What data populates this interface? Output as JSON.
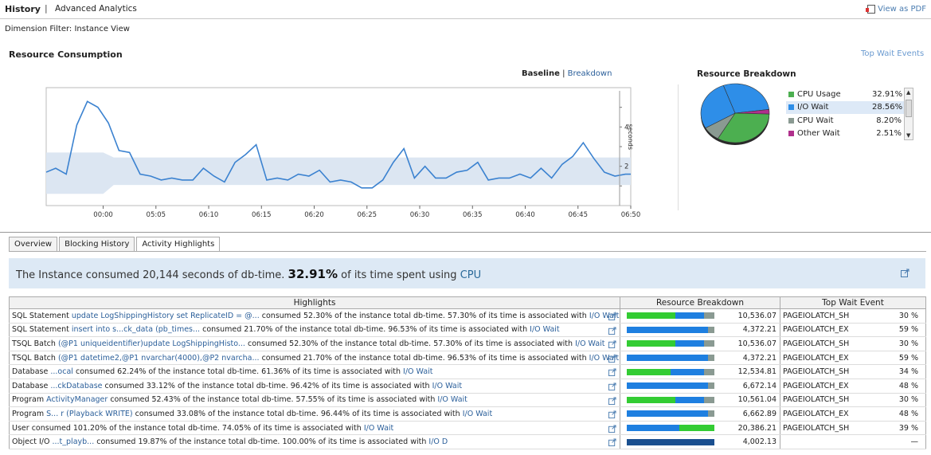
{
  "header": {
    "brand": "History",
    "separator": "|",
    "subtitle": "Advanced Analytics",
    "pdf_label": "View as PDF"
  },
  "dimension_filter": "Dimension Filter: Instance View",
  "resource_consumption": {
    "title": "Resource Consumption",
    "top_wait_link": "Top Wait Events",
    "toggle_active": "Baseline",
    "toggle_sep": "|",
    "toggle_other": "Breakdown"
  },
  "chart_data": {
    "type": "line",
    "ylabel": "seconds",
    "ylim": [
      0,
      6
    ],
    "yticks": [
      "2",
      "4"
    ],
    "xlim": [
      -5.4,
      50
    ],
    "xticks": [
      0,
      5,
      10,
      15,
      20,
      25,
      30,
      35,
      40,
      45,
      50
    ],
    "xtick_labels": [
      "00:00",
      "05:05",
      "06:10",
      "06:15",
      "06:20",
      "06:25",
      "06:30",
      "06:35",
      "06:40",
      "06:45",
      "06:50"
    ],
    "series": [
      {
        "x": [
          -5.4,
          -4.5,
          -3.5,
          -2.5,
          -1.5,
          -0.5,
          0.5,
          1.5,
          2.5,
          3.5,
          4.5,
          5.5,
          6.5,
          7.5,
          8.5,
          9.5,
          10.5,
          11.5,
          12.5,
          13.5,
          14.5,
          15.5,
          16.5,
          17.5,
          18.5,
          19.5,
          20.5,
          21.5,
          22.5,
          23.5,
          24.5,
          25.5,
          26.5,
          27.5,
          28.5,
          29.5,
          30.5,
          31.5,
          32.5,
          33.5,
          34.5,
          35.5,
          36.5,
          37.5,
          38.5,
          39.5,
          40.5,
          41.5,
          42.5,
          43.5,
          44.5,
          45.5,
          46.5,
          47.5,
          48.5,
          49.5,
          50
        ],
        "y": [
          1.7,
          1.9,
          1.6,
          4.1,
          5.3,
          5.0,
          4.2,
          2.8,
          2.7,
          1.6,
          1.5,
          1.3,
          1.4,
          1.3,
          1.3,
          1.9,
          1.5,
          1.2,
          2.2,
          2.6,
          3.1,
          1.3,
          1.4,
          1.3,
          1.6,
          1.5,
          1.8,
          1.2,
          1.3,
          1.2,
          0.9,
          0.9,
          1.3,
          2.2,
          2.9,
          1.4,
          2.0,
          1.4,
          1.4,
          1.7,
          1.8,
          2.2,
          1.3,
          1.4,
          1.4,
          1.6,
          1.4,
          1.9,
          1.4,
          2.1,
          2.5,
          3.2,
          2.4,
          1.7,
          1.5,
          1.6,
          1.6
        ]
      }
    ],
    "baseline_band": {
      "x": [
        -5.4,
        0,
        1,
        50
      ],
      "upper": [
        2.7,
        2.7,
        2.45,
        2.45
      ],
      "lower": [
        0.6,
        0.6,
        1.05,
        1.05
      ]
    }
  },
  "resource_breakdown": {
    "title": "Resource Breakdown",
    "slices": [
      {
        "label": "CPU Usage",
        "value": "32.91%",
        "pct": 32.91,
        "color": "#4caf50"
      },
      {
        "label": "I/O Wait",
        "value": "28.56%",
        "pct": 28.56,
        "color": "#2e8ee8"
      },
      {
        "label": "CPU Wait",
        "value": "8.20%",
        "pct": 8.2,
        "color": "#8a9a92"
      },
      {
        "label": "Other Wait",
        "value": "2.51%",
        "pct": 2.51,
        "color": "#b0308c"
      }
    ],
    "pie_remainder": [
      {
        "pct": 27.82,
        "color": "#2e8ee8"
      }
    ],
    "selected_index": 1
  },
  "tabs": [
    {
      "label": "Overview"
    },
    {
      "label": "Blocking History"
    },
    {
      "label": "Activity Highlights"
    }
  ],
  "banner": {
    "pre": "The Instance consumed 20,144 seconds of db-time.",
    "pct": "32.91%",
    "mid": "of its time spent using",
    "cpu": "CPU"
  },
  "table": {
    "headers": [
      "Highlights",
      "Resource Breakdown",
      "Top Wait Event"
    ],
    "rows": [
      {
        "type": "SQL Statement",
        "obj": "update LogShippingHistory set ReplicateID = @...",
        "text": "consumed 52.30% of the instance total db-time. 57.30% of its time is associated with",
        "wait_link": "I/O Wait",
        "bar": [
          0.55,
          0.33,
          0.12
        ],
        "value": "10,536.07",
        "event": "PAGEIOLATCH_SH",
        "event_pct": "30 %"
      },
      {
        "type": "SQL Statement",
        "obj": "insert into s...ck_data (pb_times...",
        "text": "consumed 21.70% of the instance total db-time. 96.53% of its time is associated with",
        "wait_link": "I/O Wait",
        "bar": [
          0.0,
          0.93,
          0.07
        ],
        "value": "4,372.21",
        "event": "PAGEIOLATCH_EX",
        "event_pct": "59 %"
      },
      {
        "type": "TSQL Batch",
        "obj": "(@P1 uniqueidentifier)update LogShippingHisto...",
        "text": "consumed 52.30% of the instance total db-time. 57.30% of its time is associated with",
        "wait_link": "I/O Wait",
        "bar": [
          0.55,
          0.33,
          0.12
        ],
        "value": "10,536.07",
        "event": "PAGEIOLATCH_SH",
        "event_pct": "30 %"
      },
      {
        "type": "TSQL Batch",
        "obj": "(@P1 datetime2,@P1 nvarchar(4000),@P2 nvarcha...",
        "text": "consumed 21.70% of the instance total db-time. 96.53% of its time is associated with",
        "wait_link": "I/O Wait",
        "bar": [
          0.0,
          0.93,
          0.07
        ],
        "value": "4,372.21",
        "event": "PAGEIOLATCH_EX",
        "event_pct": "59 %"
      },
      {
        "type": "Database",
        "obj": "...ocal",
        "text": "consumed 62.24% of the instance total db-time. 61.36% of its time is associated with",
        "wait_link": "I/O Wait",
        "bar": [
          0.5,
          0.38,
          0.12
        ],
        "value": "12,534.81",
        "event": "PAGEIOLATCH_SH",
        "event_pct": "34 %"
      },
      {
        "type": "Database",
        "obj": "...ckDatabase",
        "text": "consumed 33.12% of the instance total db-time. 96.42% of its time is associated with",
        "wait_link": "I/O Wait",
        "bar": [
          0.0,
          0.93,
          0.07
        ],
        "value": "6,672.14",
        "event": "PAGEIOLATCH_EX",
        "event_pct": "48 %"
      },
      {
        "type": "Program",
        "obj": "ActivityManager",
        "text": "consumed 52.43% of the instance total db-time. 57.55% of its time is associated with",
        "wait_link": "I/O Wait",
        "bar": [
          0.55,
          0.33,
          0.12
        ],
        "value": "10,561.04",
        "event": "PAGEIOLATCH_SH",
        "event_pct": "30 %"
      },
      {
        "type": "Program",
        "obj": "S... r (Playback WRITE)",
        "text": "consumed 33.08% of the instance total db-time. 96.44% of its time is associated with",
        "wait_link": "I/O Wait",
        "bar": [
          0.0,
          0.93,
          0.07
        ],
        "value": "6,662.89",
        "event": "PAGEIOLATCH_EX",
        "event_pct": "48 %"
      },
      {
        "type": "User",
        "obj": "",
        "text": "consumed 101.20% of the instance total db-time. 74.05% of its time is associated with",
        "wait_link": "I/O Wait",
        "bar": [
          0.0,
          0.6,
          0.4
        ],
        "bar_colors": [
          "#33cc33",
          "#1e7fe0",
          "#33cc33"
        ],
        "value": "20,386.21",
        "event": "PAGEIOLATCH_SH",
        "event_pct": "39 %"
      },
      {
        "type": "Object I/O",
        "obj": "...t_playb...",
        "text": "consumed 19.87% of the instance total db-time. 100.00% of its time is associated with",
        "wait_link": "I/O D",
        "bar": [
          0.0,
          1.0,
          0.0
        ],
        "bar_colors": [
          "#33cc33",
          "#1a4f8f",
          "#8a9a92"
        ],
        "value": "4,002.13",
        "event": "",
        "event_pct": "—"
      }
    ]
  }
}
